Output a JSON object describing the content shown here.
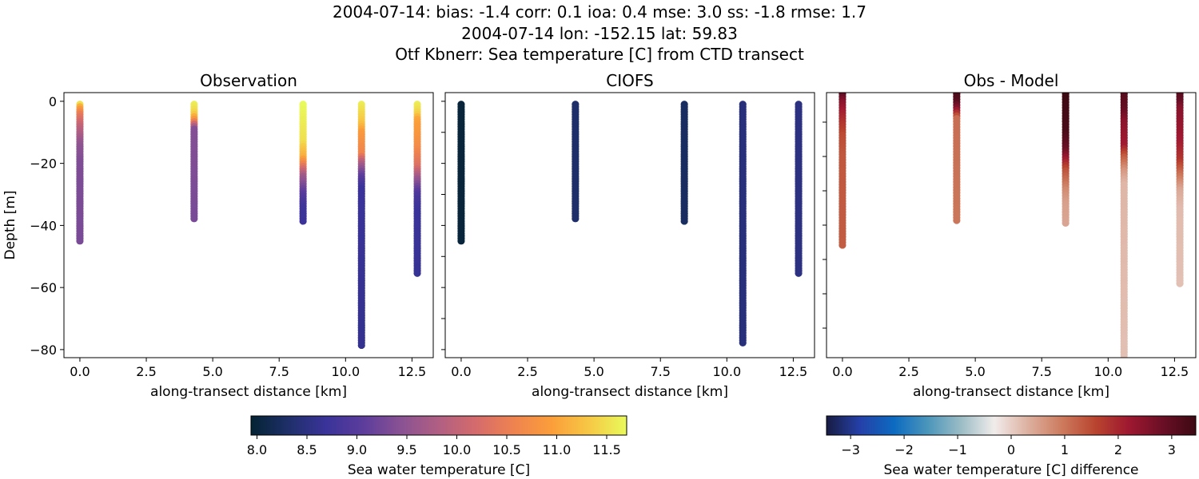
{
  "header": {
    "line1": "2004-07-14: bias: -1.4  corr: 0.1  ioa: 0.4  mse: 3.0  ss: -1.8  rmse: 1.7",
    "line2": "2004-07-14 lon: -152.15 lat: 59.83",
    "line3": "Otf Kbnerr: Sea temperature [C] from CTD transect"
  },
  "chart_data": [
    {
      "type": "scatter",
      "title": "Observation",
      "xlabel": "along-transect distance [km]",
      "ylabel": "Depth [m]",
      "xlim": [
        -0.6,
        13.3
      ],
      "ylim": [
        -82.6,
        2.8
      ],
      "xticks": [
        0.0,
        2.5,
        5.0,
        7.5,
        10.0,
        12.5
      ],
      "xtick_labels": [
        "0.0",
        "2.5",
        "5.0",
        "7.5",
        "10.0",
        "12.5"
      ],
      "yticks": [
        0,
        -20,
        -40,
        -60,
        -80
      ],
      "ytick_labels": [
        "0",
        "−20",
        "−40",
        "−60",
        "−80"
      ],
      "colormap": "thermal",
      "profiles": [
        {
          "x": 0.0,
          "depth_value": [
            [
              1,
              11.5
            ],
            [
              2,
              11.0
            ],
            [
              4,
              10.5
            ],
            [
              8,
              10.0
            ],
            [
              14,
              9.5
            ],
            [
              20,
              9.35
            ],
            [
              45,
              9.3
            ]
          ]
        },
        {
          "x": 4.3,
          "depth_value": [
            [
              1,
              11.6
            ],
            [
              4,
              11.4
            ],
            [
              6,
              10.8
            ],
            [
              9,
              9.4
            ],
            [
              38,
              9.3
            ]
          ]
        },
        {
          "x": 8.4,
          "depth_value": [
            [
              1,
              11.7
            ],
            [
              13,
              11.5
            ],
            [
              18,
              11.1
            ],
            [
              21,
              10.4
            ],
            [
              24,
              9.7
            ],
            [
              30,
              9.0
            ],
            [
              34,
              8.75
            ],
            [
              39,
              8.7
            ]
          ]
        },
        {
          "x": 10.6,
          "depth_value": [
            [
              1,
              11.6
            ],
            [
              7,
              11.3
            ],
            [
              10,
              10.9
            ],
            [
              17,
              10.6
            ],
            [
              20,
              9.8
            ],
            [
              24,
              9.1
            ],
            [
              28,
              8.7
            ],
            [
              79,
              8.6
            ]
          ]
        },
        {
          "x": 12.7,
          "depth_value": [
            [
              1,
              11.6
            ],
            [
              4,
              11.4
            ],
            [
              6,
              11.0
            ],
            [
              15,
              10.7
            ],
            [
              21,
              10.3
            ],
            [
              25,
              9.6
            ],
            [
              30,
              8.9
            ],
            [
              35,
              8.7
            ],
            [
              56,
              8.65
            ]
          ]
        }
      ]
    },
    {
      "type": "scatter",
      "title": "CIOFS",
      "xlabel": "along-transect distance [km]",
      "xlim": [
        -0.6,
        13.3
      ],
      "ylim": [
        -82.6,
        2.8
      ],
      "xticks": [
        0.0,
        2.5,
        5.0,
        7.5,
        10.0,
        12.5
      ],
      "xtick_labels": [
        "0.0",
        "2.5",
        "5.0",
        "7.5",
        "10.0",
        "12.5"
      ],
      "colormap": "thermal",
      "profiles": [
        {
          "x": 0.0,
          "depth_value": [
            [
              1,
              8.0
            ],
            [
              45,
              8.0
            ]
          ]
        },
        {
          "x": 4.3,
          "depth_value": [
            [
              1,
              8.3
            ],
            [
              38,
              8.3
            ]
          ]
        },
        {
          "x": 8.4,
          "depth_value": [
            [
              1,
              8.25
            ],
            [
              39,
              8.25
            ]
          ]
        },
        {
          "x": 10.6,
          "depth_value": [
            [
              1,
              8.45
            ],
            [
              78,
              8.45
            ]
          ]
        },
        {
          "x": 12.7,
          "depth_value": [
            [
              1,
              8.5
            ],
            [
              56,
              8.5
            ]
          ]
        }
      ]
    },
    {
      "type": "scatter",
      "title": "Obs - Model",
      "xlabel": "along-transect distance [km]",
      "xlim": [
        -0.6,
        13.3
      ],
      "ylim": [
        -78.6,
        -1.4
      ],
      "xticks": [
        0.0,
        2.5,
        5.0,
        7.5,
        10.0,
        12.5
      ],
      "xtick_labels": [
        "0.0",
        "2.5",
        "5.0",
        "7.5",
        "10.0",
        "12.5"
      ],
      "colormap": "balance"
    }
  ],
  "colorbars": [
    {
      "label": "Sea water temperature [C]",
      "range": [
        7.94,
        11.7
      ],
      "ticks": [
        8.0,
        8.5,
        9.0,
        9.5,
        10.0,
        10.5,
        11.0,
        11.5
      ],
      "tick_labels": [
        "8.0",
        "8.5",
        "9.0",
        "9.5",
        "10.0",
        "10.5",
        "11.0",
        "11.5"
      ],
      "colors": [
        "#042333",
        "#1f2f6a",
        "#3a3399",
        "#5d3d9c",
        "#8a5293",
        "#b15f82",
        "#d56b6c",
        "#ef8350",
        "#fb9e3a",
        "#f7c845",
        "#e8fa5b"
      ]
    },
    {
      "label": "Sea water temperature [C] difference",
      "range": [
        -3.45,
        3.45
      ],
      "ticks": [
        -3,
        -2,
        -1,
        0,
        1,
        2,
        3
      ],
      "tick_labels": [
        "−3",
        "−2",
        "−1",
        "0",
        "1",
        "2",
        "3"
      ],
      "colors": [
        "#181c43",
        "#2540a8",
        "#0c6ac0",
        "#4a95bb",
        "#9bbcc5",
        "#f1eceb",
        "#ddb0a0",
        "#cd7b5e",
        "#b9452f",
        "#9e1830",
        "#6b0f26",
        "#3c0912"
      ]
    }
  ]
}
